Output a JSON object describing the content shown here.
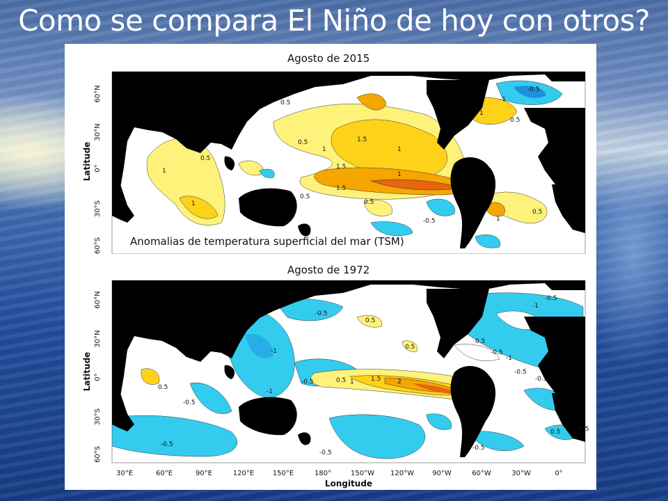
{
  "slide": {
    "title": "Como se compara El Niño de hoy con otros?"
  },
  "figure": {
    "overlay_caption": "Anomalias de temperatura superficial del mar (TSM)",
    "colors": {
      "warm_light": "#fff27a",
      "warm_mid": "#ffd21a",
      "warm_deep": "#f5a600",
      "warm_hot": "#e8640f",
      "cool": "#33ccee",
      "cool_deep": "#1e90e0",
      "land": "#000000"
    },
    "panels": [
      {
        "caption": "Agosto de 2015",
        "y_axis_label": "Latitude",
        "lat_ticks": [
          "60°N",
          "30°N",
          "0°",
          "30°S",
          "60°S"
        ],
        "contour_labels": [
          "0.5",
          "0.5",
          "1",
          "1.5",
          "1",
          "1.5",
          "1",
          "0.5",
          "1",
          "1",
          "0.5",
          "0.5",
          "-0.5",
          "1",
          "0.5",
          "-1",
          "-0.5",
          "0.5",
          "1.5",
          "1"
        ]
      },
      {
        "caption": "Agosto de 1972",
        "y_axis_label": "Latitude",
        "x_axis_label": "Longitude",
        "lat_ticks": [
          "60°N",
          "30°N",
          "0°",
          "30°S",
          "60°S"
        ],
        "lon_ticks": [
          "30°E",
          "60°E",
          "90°E",
          "120°E",
          "150°E",
          "180°",
          "150°W",
          "120°W",
          "90°W",
          "60°W",
          "30°W",
          "0°"
        ],
        "contour_labels": [
          "-0.5",
          "0.5",
          "-1",
          "0.5",
          "-0.5",
          "-1",
          "0.5",
          "1",
          "1.5",
          "2",
          "-0.5",
          "-0.5",
          "0.5",
          "-0.5",
          "-1",
          "-1",
          "-0.5",
          "0.5",
          "-0.5",
          "-0.5",
          "0.5",
          "-0.5",
          "-0.5",
          "-0.5"
        ]
      }
    ]
  }
}
